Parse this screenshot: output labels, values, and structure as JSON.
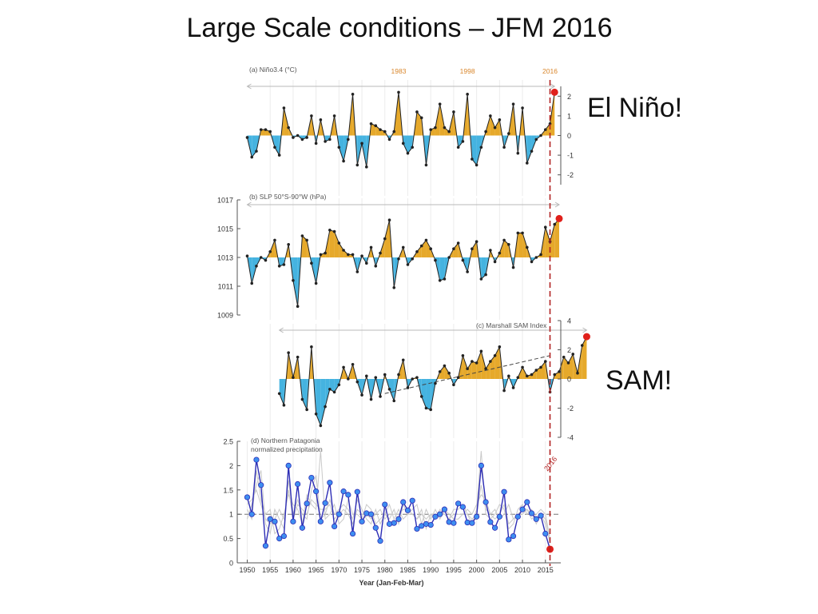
{
  "slide": {
    "title": "Large Scale conditions – JFM 2016",
    "callout_elnino": "El Niño!",
    "callout_sam": "SAM!"
  },
  "colors": {
    "positive_fill": "#e6a92b",
    "negative_fill": "#45b3e0",
    "event_marker": "#e0201b",
    "event_line": "#b22222",
    "year_highlight": "#d9862b",
    "precip_line": "#2d2db5",
    "precip_marker": "#3e8ef0",
    "ensemble_line": "#c9c9c9"
  },
  "chart_data": [
    {
      "id": "nino",
      "type": "area",
      "title": "(a) Niño3.4 (°C)",
      "baseline": 0,
      "ylim": [
        -2.5,
        2.5
      ],
      "yticks": [
        2,
        1,
        0,
        -1,
        -2
      ],
      "y_axis_side": "right",
      "highlight_years": [
        1983,
        1998,
        2016
      ],
      "x_start": 1950,
      "values": [
        -0.1,
        -1.1,
        -0.8,
        0.3,
        0.3,
        0.2,
        -0.6,
        -1.0,
        1.4,
        0.4,
        -0.1,
        0.0,
        -0.2,
        -0.1,
        1.0,
        -0.4,
        0.8,
        -0.3,
        -0.2,
        1.0,
        -0.6,
        -1.3,
        -0.2,
        2.1,
        -1.5,
        -0.4,
        -1.6,
        0.6,
        0.5,
        0.3,
        0.2,
        -0.2,
        0.2,
        2.2,
        -0.4,
        -0.9,
        -0.6,
        1.2,
        0.9,
        -1.5,
        0.3,
        0.4,
        1.6,
        0.4,
        0.2,
        1.2,
        -0.6,
        -0.3,
        2.1,
        -1.2,
        -1.5,
        -0.6,
        0.2,
        1.0,
        0.4,
        0.8,
        -0.6,
        0.1,
        1.6,
        -0.9,
        1.4,
        -1.4,
        -0.8,
        -0.2,
        0.0,
        0.3,
        0.6,
        2.2
      ]
    },
    {
      "id": "slp",
      "type": "area",
      "title": "(b) SLP 50°S-90°W (hPa)",
      "baseline": 1013,
      "ylim": [
        1009,
        1017
      ],
      "yticks": [
        1017,
        1015,
        1013,
        1011,
        1009
      ],
      "y_axis_side": "left",
      "x_start": 1950,
      "values": [
        1013.1,
        1011.2,
        1012.4,
        1013.0,
        1012.8,
        1013.4,
        1014.2,
        1012.4,
        1012.5,
        1013.9,
        1011.4,
        1009.6,
        1014.5,
        1014.2,
        1012.6,
        1011.2,
        1013.2,
        1013.3,
        1014.9,
        1014.8,
        1014.0,
        1013.5,
        1013.2,
        1013.2,
        1012.0,
        1013.1,
        1012.6,
        1013.7,
        1012.4,
        1013.3,
        1014.3,
        1015.6,
        1010.9,
        1012.9,
        1013.7,
        1012.5,
        1012.9,
        1013.4,
        1013.8,
        1014.2,
        1013.6,
        1012.8,
        1011.4,
        1011.5,
        1013.0,
        1013.6,
        1014.0,
        1012.8,
        1012.0,
        1013.6,
        1014.1,
        1011.5,
        1011.8,
        1013.5,
        1012.7,
        1013.3,
        1014.2,
        1013.9,
        1012.3,
        1014.7,
        1014.7,
        1013.7,
        1012.7,
        1013.0,
        1013.2,
        1015.1,
        1014.1,
        1015.3,
        1015.7
      ]
    },
    {
      "id": "sam",
      "type": "area",
      "title": "(c) Marshall SAM Index",
      "baseline": 0,
      "ylim": [
        -4,
        4
      ],
      "yticks": [
        4,
        2,
        0,
        -2,
        -4
      ],
      "y_axis_side": "right",
      "x_start": 1957,
      "trend": [
        [
          1980,
          -1.0
        ],
        [
          2016,
          1.6
        ]
      ],
      "values": [
        -1.0,
        -1.8,
        1.8,
        0.1,
        1.5,
        -1.4,
        -2.1,
        2.2,
        -2.4,
        -3.2,
        -1.9,
        -0.7,
        -0.9,
        -0.4,
        0.8,
        0.0,
        1.0,
        -0.2,
        -1.1,
        0.2,
        -1.4,
        0.1,
        -1.2,
        0.3,
        -0.7,
        -1.5,
        0.3,
        1.3,
        -0.6,
        0.0,
        0.1,
        -1.2,
        -2.0,
        -2.1,
        -0.3,
        0.5,
        0.9,
        0.4,
        -0.4,
        0.1,
        1.6,
        0.7,
        1.2,
        1.1,
        1.9,
        0.7,
        1.2,
        1.6,
        2.2,
        -0.8,
        0.2,
        -0.6,
        0.1,
        0.8,
        0.2,
        0.3,
        0.6,
        0.8,
        1.2,
        -0.9,
        0.3,
        0.5,
        1.5,
        1.1,
        1.7,
        0.4,
        2.3,
        2.9
      ]
    },
    {
      "id": "precip",
      "type": "line",
      "title": "(d) Northern Patagonia",
      "subtitle": "normalized precipitation",
      "xlabel": "Year (Jan-Feb-Mar)",
      "baseline": 1,
      "ylim": [
        0,
        2.5
      ],
      "yticks": [
        2.5,
        2,
        1.5,
        1,
        0.5,
        0
      ],
      "y_axis_side": "left",
      "xlim": [
        1948,
        2018
      ],
      "xticks": [
        1950,
        1955,
        1960,
        1965,
        1970,
        1975,
        1980,
        1985,
        1990,
        1995,
        2000,
        2005,
        2010,
        2015
      ],
      "x_start": 1950,
      "values": [
        1.35,
        1.0,
        2.12,
        1.6,
        0.35,
        0.9,
        0.85,
        0.5,
        0.55,
        2.0,
        0.85,
        1.62,
        0.72,
        1.22,
        1.75,
        1.47,
        0.85,
        1.23,
        1.65,
        0.75,
        1.0,
        1.47,
        1.4,
        0.6,
        1.46,
        0.85,
        1.02,
        1.0,
        0.72,
        0.45,
        1.2,
        0.8,
        0.82,
        0.9,
        1.25,
        1.08,
        1.28,
        0.7,
        0.76,
        0.8,
        0.78,
        0.95,
        1.0,
        1.1,
        0.84,
        0.82,
        1.22,
        1.15,
        0.83,
        0.82,
        0.95,
        2.0,
        1.25,
        0.84,
        0.72,
        0.95,
        1.46,
        0.48,
        0.55,
        0.95,
        1.1,
        1.25,
        1.02,
        0.9,
        0.97,
        0.6,
        0.28
      ],
      "ensemble": [
        [
          0.9,
          1.2,
          1.6,
          1.9,
          0.8,
          0.6,
          1.1,
          0.9,
          0.7,
          1.7,
          1.0,
          1.3,
          1.0,
          0.9,
          1.5,
          1.8,
          0.9,
          1.0,
          1.3,
          1.0,
          1.1,
          1.2,
          1.1,
          0.9,
          1.3,
          1.1,
          0.9,
          0.8,
          1.1,
          0.8,
          1.0,
          0.9,
          1.1,
          0.8,
          1.2,
          1.0,
          1.0,
          0.9,
          1.1,
          0.7,
          1.0,
          0.9,
          1.1,
          1.0,
          0.9,
          1.1,
          1.1,
          1.2,
          1.0,
          0.8,
          1.1,
          2.3,
          1.0,
          0.9,
          1.0,
          1.2,
          1.1,
          0.7,
          0.8,
          1.1,
          1.2,
          1.0,
          1.1,
          0.8,
          1.0,
          0.8,
          0.4
        ],
        [
          1.1,
          0.9,
          1.9,
          1.3,
          1.0,
          1.1,
          0.6,
          0.7,
          1.0,
          1.4,
          1.2,
          1.1,
          0.8,
          1.4,
          1.2,
          1.1,
          2.3,
          0.9,
          1.0,
          1.2,
          0.8,
          0.9,
          1.3,
          1.0,
          1.0,
          0.9,
          1.2,
          1.1,
          0.8,
          0.9,
          1.0,
          1.2,
          0.9,
          1.1,
          0.9,
          1.0,
          1.1,
          1.2,
          0.8,
          1.1,
          0.9,
          1.1,
          0.9,
          1.1,
          1.0,
          0.9,
          0.9,
          1.0,
          1.1,
          1.0,
          1.2,
          1.4,
          1.3,
          1.0,
          1.1,
          0.9,
          1.0,
          1.2,
          0.9,
          1.0,
          1.1,
          1.1,
          0.9,
          1.0,
          1.1,
          1.0,
          0.5
        ],
        [
          1.2,
          1.3,
          1.5,
          1.2,
          0.9,
          0.8,
          0.9,
          1.1,
          0.9,
          1.5,
          0.9,
          1.2,
          1.1,
          1.0,
          1.3,
          1.2,
          1.1,
          1.1,
          1.2,
          0.9,
          1.0,
          1.1,
          1.0,
          0.8,
          1.1,
          1.0,
          1.0,
          0.9,
          1.0,
          1.1,
          0.9,
          1.0,
          1.0,
          1.0,
          1.1,
          1.1,
          1.0,
          0.9,
          1.0,
          0.9,
          1.0,
          1.0,
          1.0,
          1.0,
          0.9,
          1.0,
          1.0,
          1.0,
          1.0,
          0.9,
          1.0,
          1.6,
          1.1,
          1.0,
          0.9,
          1.0,
          1.2,
          0.8,
          0.9,
          1.0,
          1.0,
          1.1,
          1.0,
          0.9,
          1.0,
          0.9,
          0.5
        ]
      ]
    }
  ],
  "event": {
    "label": "2016",
    "year": 2016
  }
}
